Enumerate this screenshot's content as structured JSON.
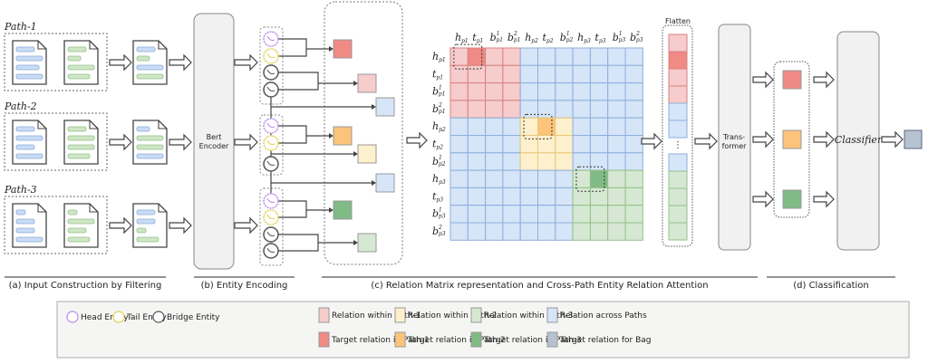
{
  "paths": [
    "Path-1",
    "Path-2",
    "Path-3"
  ],
  "encoder_label": "Bert Encoder",
  "flatten_label": "Flatten",
  "transformer_label": [
    "Trans-",
    "former"
  ],
  "classifier_label": "Classifier",
  "sections": [
    "(a) Input Construction by Filtering",
    "(b) Entity Encoding",
    "(c) Relation Matrix representation and Cross-Path Entity Relation Attention",
    "(d) Classification"
  ],
  "matrix": {
    "labels": [
      "h_p1",
      "t_p1",
      "b1_p1",
      "b2_p1",
      "h_p2",
      "t_p2",
      "b1_p2",
      "h_p3",
      "t_p3",
      "b1_p3",
      "b2_p3"
    ],
    "groups": [
      4,
      3,
      4
    ],
    "targets": [
      [
        0,
        1
      ],
      [
        4,
        5
      ],
      [
        7,
        8
      ]
    ]
  },
  "colors": {
    "path1": "#f6cccc",
    "path1_target": "#ef8a84",
    "path2": "#fdf0cc",
    "path2_target": "#fcc37a",
    "path3": "#d6e8d3",
    "path3_target": "#80bb86",
    "across": "#d6e5f8",
    "bag": "#b6c2d0",
    "head": "#b98be8",
    "tail": "#e3cf4a",
    "bridge": "#555555",
    "doc_blue": "#c9dcf5",
    "doc_green": "#cfe6c6"
  },
  "legend": {
    "entities": [
      "Head Entity",
      "Tail Entity",
      "Bridge Entity"
    ],
    "relations": [
      "Relation within Path-1",
      "Relation within Path-2",
      "Relation within Path-3",
      "Relation across Paths",
      "Target relation in Path-1",
      "Target relation in Path-2",
      "Target relation in Path-3",
      "Target relation for Bag"
    ]
  }
}
